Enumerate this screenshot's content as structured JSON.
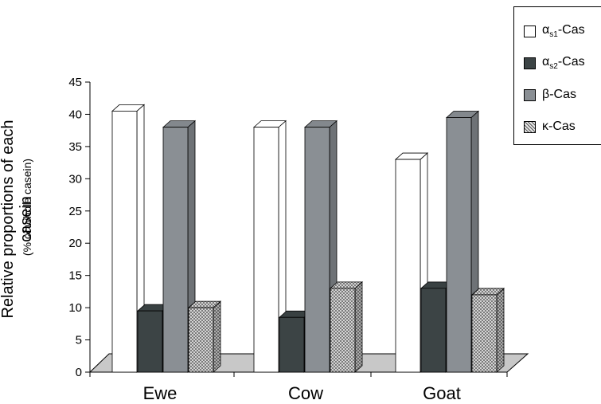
{
  "chart_data": {
    "type": "bar",
    "title": "",
    "ylabel": "Relative proportions of each casein",
    "ylabel_sub": "(% of whole casein)",
    "xlabel": "",
    "categories": [
      "Ewe",
      "Cow",
      "Goat"
    ],
    "ylim": [
      0,
      45
    ],
    "yticks": [
      "0",
      "5",
      "10",
      "15",
      "20",
      "25",
      "30",
      "35",
      "40",
      "45"
    ],
    "legend_position": "top-right",
    "series": [
      {
        "name": "αs1-Cas",
        "symbol": "α",
        "sub": "s1",
        "suffix": "-Cas",
        "color": "#ffffff",
        "values": [
          40.5,
          38,
          33
        ]
      },
      {
        "name": "αs2-Cas",
        "symbol": "α",
        "sub": "s2",
        "suffix": "-Cas",
        "color": "#3c4445",
        "values": [
          9.5,
          8.5,
          13
        ]
      },
      {
        "name": "β-Cas",
        "symbol": "β",
        "sub": "",
        "suffix": "-Cas",
        "color": "#8a8f94",
        "values": [
          38,
          38,
          39.5
        ]
      },
      {
        "name": "κ-Cas",
        "symbol": "κ",
        "sub": "",
        "suffix": "-Cas",
        "color": "#d8d8d8",
        "pattern": "hatched",
        "values": [
          10,
          13,
          12
        ]
      }
    ]
  }
}
